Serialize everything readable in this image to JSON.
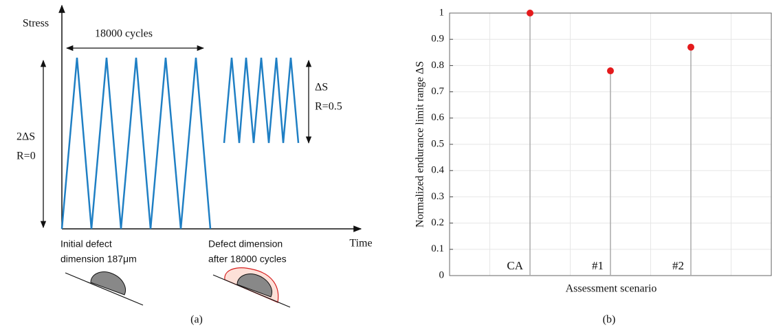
{
  "diagram": {
    "y_axis_label": "Stress",
    "x_axis_label": "Time",
    "period_label": "18000 cycles",
    "left_range": [
      "2ΔS",
      "R=0"
    ],
    "right_range": [
      "ΔS",
      "R=0.5"
    ],
    "initial_defect": [
      "Initial defect",
      "dimension 187μm"
    ],
    "final_defect": [
      "Defect dimension",
      "after 18000 cycles"
    ],
    "caption": "(a)"
  },
  "chart_data": {
    "type": "stem",
    "categories": [
      "CA",
      "#1",
      "#2"
    ],
    "values": [
      1,
      0.78,
      0.87
    ],
    "color": "#e41a1c",
    "ylim": [
      0,
      1
    ],
    "yticks": [
      0,
      0.1,
      0.2,
      0.3,
      0.4,
      0.5,
      0.6,
      0.7,
      0.8,
      0.9,
      1
    ],
    "grid": true,
    "ylabel": "Normalized endurance limit range ΔS",
    "xlabel": "Assessment scenario",
    "caption": "(b)"
  }
}
